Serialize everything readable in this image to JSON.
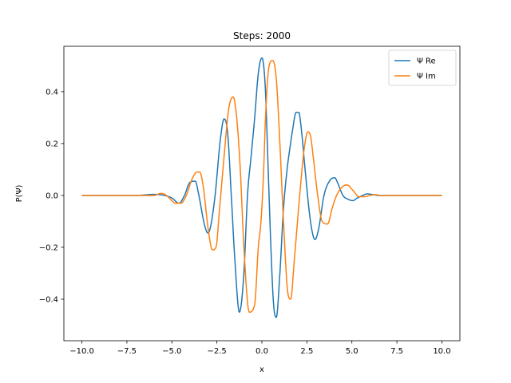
{
  "chart_data": {
    "type": "line",
    "title": "Steps: 2000",
    "xlabel": "x",
    "ylabel": "P(Ψ)",
    "xlim": [
      -11.0,
      11.0
    ],
    "ylim": [
      -0.56,
      0.575
    ],
    "x_ticks": [
      -10.0,
      -7.5,
      -5.0,
      -2.5,
      0.0,
      2.5,
      5.0,
      7.5,
      10.0
    ],
    "x_tick_labels": [
      "−10.0",
      "−7.5",
      "−5.0",
      "−2.5",
      "0.0",
      "2.5",
      "5.0",
      "7.5",
      "10.0"
    ],
    "y_ticks": [
      -0.4,
      -0.2,
      0.0,
      0.2,
      0.4
    ],
    "y_tick_labels": [
      "−0.4",
      "−0.2",
      "0.0",
      "0.2",
      "0.4"
    ],
    "grid": false,
    "legend": "top-right",
    "x_range": [
      -10,
      10
    ],
    "series": [
      {
        "name": "Ψ Re",
        "color": "#1f77b4",
        "x": [
          -10.0,
          -7.0,
          -6.0,
          -5.4,
          -5.0,
          -4.6,
          -4.3,
          -4.0,
          -3.7,
          -3.5,
          -3.2,
          -3.0,
          -2.85,
          -2.6,
          -2.3,
          -2.1,
          -1.9,
          -1.7,
          -1.5,
          -1.25,
          -1.0,
          -0.8,
          -0.6,
          -0.4,
          -0.2,
          0.0,
          0.1,
          0.2,
          0.35,
          0.5,
          0.65,
          0.8,
          1.0,
          1.2,
          1.4,
          1.55,
          1.7,
          1.9,
          2.05,
          2.2,
          2.4,
          2.7,
          2.95,
          3.15,
          3.45,
          3.8,
          4.05,
          4.2,
          4.5,
          4.8,
          5.05,
          5.3,
          5.6,
          5.85,
          6.1,
          6.5,
          7.0,
          10.0
        ],
        "y": [
          0.0,
          0.0,
          0.004,
          0.0,
          -0.01,
          -0.03,
          0.0,
          0.05,
          0.055,
          0.0,
          -0.11,
          -0.145,
          -0.12,
          0.0,
          0.22,
          0.295,
          0.24,
          0.0,
          -0.25,
          -0.45,
          -0.3,
          0.0,
          0.15,
          0.3,
          0.47,
          0.53,
          0.5,
          0.4,
          0.1,
          -0.2,
          -0.42,
          -0.47,
          -0.3,
          -0.05,
          0.1,
          0.18,
          0.25,
          0.32,
          0.32,
          0.25,
          0.1,
          -0.1,
          -0.17,
          -0.13,
          0.0,
          0.06,
          0.068,
          0.05,
          0.0,
          -0.015,
          -0.02,
          -0.01,
          0.0,
          0.006,
          0.004,
          0.0,
          0.0,
          0.0
        ]
      },
      {
        "name": "Ψ Im",
        "color": "#ff7f0e",
        "x": [
          -10.0,
          -7.0,
          -6.0,
          -5.6,
          -5.3,
          -5.0,
          -4.8,
          -4.5,
          -4.2,
          -3.9,
          -3.6,
          -3.45,
          -3.25,
          -3.0,
          -2.75,
          -2.55,
          -2.35,
          -2.1,
          -1.85,
          -1.6,
          -1.4,
          -1.2,
          -1.0,
          -0.7,
          -0.4,
          -0.2,
          -0.05,
          0.1,
          0.2,
          0.4,
          0.6,
          0.8,
          1.0,
          1.2,
          1.45,
          1.6,
          1.8,
          2.1,
          2.35,
          2.55,
          2.7,
          2.85,
          3.1,
          3.35,
          3.65,
          3.9,
          4.15,
          4.5,
          4.75,
          5.05,
          5.4,
          5.7,
          6.0,
          6.3,
          6.6,
          7.0,
          10.0
        ],
        "y": [
          0.0,
          0.0,
          0.0,
          0.008,
          0.0,
          -0.02,
          -0.03,
          -0.03,
          0.0,
          0.06,
          0.09,
          0.09,
          0.03,
          -0.12,
          -0.21,
          -0.2,
          -0.05,
          0.15,
          0.33,
          0.38,
          0.3,
          0.1,
          -0.2,
          -0.45,
          -0.42,
          -0.2,
          -0.1,
          0.1,
          0.3,
          0.5,
          0.52,
          0.45,
          0.2,
          -0.1,
          -0.38,
          -0.4,
          -0.25,
          0.0,
          0.18,
          0.245,
          0.23,
          0.15,
          0.0,
          -0.1,
          -0.11,
          -0.05,
          0.0,
          0.035,
          0.04,
          0.02,
          -0.005,
          -0.005,
          0.0,
          0.003,
          0.0,
          0.0,
          0.0
        ]
      }
    ]
  }
}
